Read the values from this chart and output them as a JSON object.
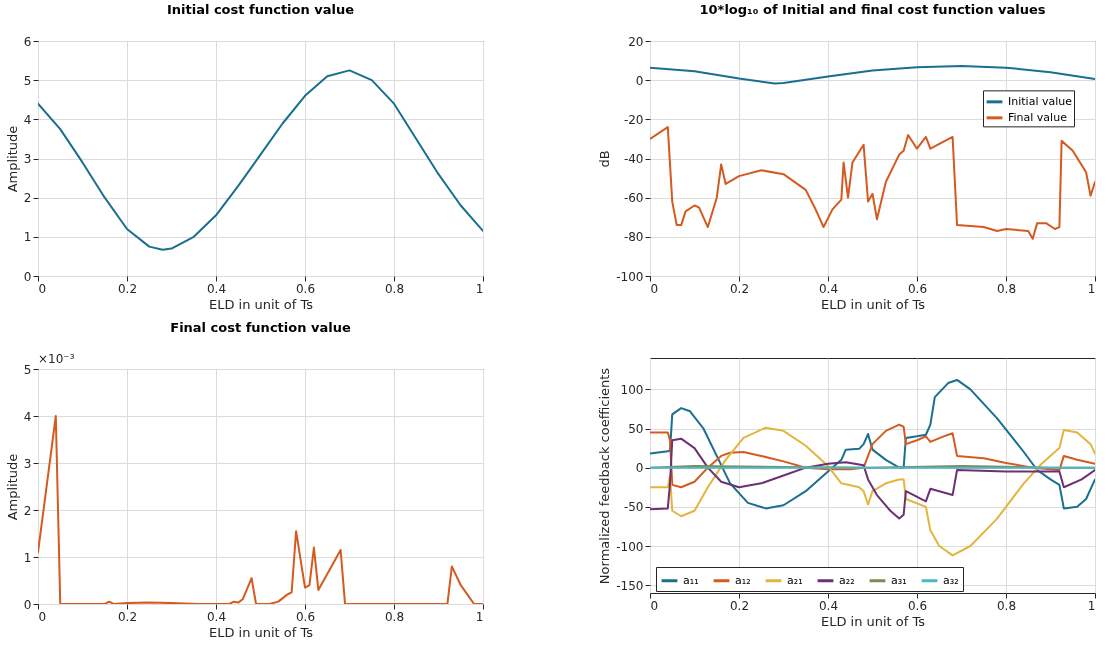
{
  "chart_data": [
    {
      "type": "line",
      "title": "Initial cost function value",
      "xlabel": "ELD in unit of Ts",
      "ylabel": "Amplitude",
      "xlim": [
        0,
        1
      ],
      "xticks": [
        0,
        0.2,
        0.4,
        0.6,
        0.8,
        1
      ],
      "ylim": [
        0,
        6
      ],
      "yticks": [
        0,
        1,
        2,
        3,
        4,
        5,
        6
      ],
      "grid": true,
      "series": [
        {
          "color": "#1a6f8f",
          "x": [
            0,
            0.05,
            0.1,
            0.15,
            0.2,
            0.25,
            0.28,
            0.3,
            0.35,
            0.4,
            0.45,
            0.5,
            0.55,
            0.6,
            0.65,
            0.7,
            0.75,
            0.8,
            0.85,
            0.9,
            0.95,
            1
          ],
          "values": [
            4.4,
            3.75,
            2.9,
            2.0,
            1.2,
            0.75,
            0.67,
            0.7,
            1.0,
            1.55,
            2.3,
            3.1,
            3.9,
            4.6,
            5.1,
            5.25,
            5.0,
            4.4,
            3.5,
            2.6,
            1.8,
            1.15
          ]
        }
      ]
    },
    {
      "type": "line",
      "title": "10*log₁₀ of Initial and final cost function values",
      "xlabel": "ELD in unit of Ts",
      "ylabel": "dB",
      "xlim": [
        0,
        1
      ],
      "xticks": [
        0,
        0.2,
        0.4,
        0.6,
        0.8,
        1
      ],
      "ylim": [
        -100,
        20
      ],
      "yticks": [
        -100,
        -80,
        -60,
        -40,
        -20,
        0,
        20
      ],
      "grid": true,
      "legend": "top right",
      "series": [
        {
          "name": "Initial value",
          "color": "#1a6f8f",
          "x": [
            0,
            0.1,
            0.2,
            0.28,
            0.3,
            0.4,
            0.5,
            0.6,
            0.7,
            0.8,
            0.9,
            1
          ],
          "values": [
            6.4,
            4.6,
            0.8,
            -1.7,
            -1.5,
            1.9,
            4.9,
            6.6,
            7.2,
            6.4,
            4.1,
            0.6
          ]
        },
        {
          "name": "Final value",
          "color": "#d45a1f",
          "x": [
            0,
            0.04,
            0.05,
            0.06,
            0.07,
            0.08,
            0.1,
            0.11,
            0.13,
            0.15,
            0.16,
            0.17,
            0.2,
            0.25,
            0.3,
            0.35,
            0.37,
            0.39,
            0.41,
            0.43,
            0.435,
            0.445,
            0.455,
            0.48,
            0.49,
            0.5,
            0.51,
            0.53,
            0.56,
            0.57,
            0.58,
            0.6,
            0.62,
            0.63,
            0.68,
            0.69,
            0.75,
            0.78,
            0.8,
            0.85,
            0.86,
            0.87,
            0.89,
            0.91,
            0.92,
            0.925,
            0.95,
            0.98,
            0.99,
            1
          ],
          "values": [
            -30,
            -24,
            -62,
            -74,
            -74,
            -67,
            -64,
            -65,
            -75,
            -60,
            -43,
            -53,
            -49,
            -46,
            -48,
            -56,
            -65,
            -75,
            -66,
            -61,
            -42,
            -60,
            -42,
            -33,
            -62,
            -58,
            -71,
            -52,
            -38,
            -36,
            -28,
            -35,
            -29,
            -35,
            -29,
            -74,
            -75,
            -77,
            -76,
            -77,
            -81,
            -73,
            -73,
            -76,
            -75,
            -31,
            -36,
            -47,
            -59,
            -52
          ]
        }
      ]
    },
    {
      "type": "line",
      "title": "Final cost function value",
      "xlabel": "ELD in unit of Ts",
      "ylabel": "Amplitude",
      "xlim": [
        0,
        1
      ],
      "xticks": [
        0,
        0.2,
        0.4,
        0.6,
        0.8,
        1
      ],
      "ylim": [
        0,
        5
      ],
      "yticks": [
        0,
        1,
        2,
        3,
        4,
        5
      ],
      "grid": true,
      "annotations": [
        "×10⁻³"
      ],
      "series": [
        {
          "color": "#d45a1f",
          "x": [
            0,
            0.04,
            0.05,
            0.15,
            0.16,
            0.17,
            0.2,
            0.25,
            0.3,
            0.36,
            0.43,
            0.44,
            0.45,
            0.46,
            0.48,
            0.49,
            0.52,
            0.54,
            0.56,
            0.57,
            0.58,
            0.6,
            0.61,
            0.62,
            0.63,
            0.68,
            0.69,
            0.92,
            0.93,
            0.95,
            0.98,
            1
          ],
          "values": [
            1.1,
            4.0,
            0,
            0,
            0.05,
            0,
            0.02,
            0.03,
            0.02,
            0,
            0,
            0.05,
            0.03,
            0.1,
            0.55,
            0,
            0,
            0.05,
            0.2,
            0.25,
            1.55,
            0.35,
            0.4,
            1.2,
            0.3,
            1.15,
            0,
            0,
            0.8,
            0.4,
            0,
            0
          ]
        }
      ]
    },
    {
      "type": "line",
      "xlabel": "ELD in unit of Ts",
      "ylabel": "Normalized feedback coefficients",
      "xlim": [
        0,
        1
      ],
      "xticks": [
        0,
        0.2,
        0.4,
        0.6,
        0.8,
        1
      ],
      "ylim": [
        -160,
        140
      ],
      "yticks": [
        -150,
        -100,
        -50,
        0,
        50,
        100
      ],
      "grid": true,
      "legend": "bottom",
      "series": [
        {
          "name": "a₁₁",
          "color": "#1a6f8f",
          "x": [
            0,
            0.04,
            0.045,
            0.05,
            0.07,
            0.09,
            0.12,
            0.15,
            0.18,
            0.22,
            0.26,
            0.3,
            0.35,
            0.4,
            0.43,
            0.44,
            0.47,
            0.48,
            0.49,
            0.5,
            0.53,
            0.56,
            0.57,
            0.575,
            0.6,
            0.62,
            0.63,
            0.64,
            0.67,
            0.69,
            0.72,
            0.78,
            0.84,
            0.87,
            0.9,
            0.92,
            0.93,
            0.96,
            0.98,
            1
          ],
          "values": [
            18,
            21,
            22,
            68,
            76,
            72,
            50,
            15,
            -20,
            -45,
            -52,
            -48,
            -30,
            -5,
            10,
            23,
            24,
            30,
            43,
            23,
            10,
            0,
            0,
            38,
            40,
            42,
            55,
            90,
            108,
            112,
            100,
            63,
            20,
            -3,
            -15,
            -22,
            -52,
            -50,
            -40,
            -15
          ]
        },
        {
          "name": "a₁₂",
          "color": "#d45a1f",
          "x": [
            0,
            0.04,
            0.045,
            0.05,
            0.07,
            0.1,
            0.13,
            0.16,
            0.18,
            0.21,
            0.25,
            0.3,
            0.35,
            0.4,
            0.45,
            0.48,
            0.5,
            0.53,
            0.56,
            0.57,
            0.575,
            0.6,
            0.62,
            0.63,
            0.66,
            0.68,
            0.69,
            0.75,
            0.8,
            0.86,
            0.92,
            0.93,
            0.96,
            1
          ],
          "values": [
            45,
            45,
            35,
            -22,
            -25,
            -18,
            0,
            15,
            19,
            20,
            15,
            8,
            0,
            -2,
            -2,
            0,
            30,
            47,
            55,
            52,
            30,
            35,
            40,
            33,
            40,
            44,
            15,
            12,
            6,
            0,
            -3,
            15,
            10,
            5
          ]
        },
        {
          "name": "a₂₁",
          "color": "#e3b53c",
          "x": [
            0,
            0.04,
            0.045,
            0.05,
            0.07,
            0.1,
            0.13,
            0.17,
            0.21,
            0.26,
            0.3,
            0.35,
            0.4,
            0.43,
            0.47,
            0.48,
            0.49,
            0.5,
            0.53,
            0.56,
            0.57,
            0.575,
            0.62,
            0.63,
            0.65,
            0.68,
            0.72,
            0.78,
            0.84,
            0.88,
            0.92,
            0.93,
            0.96,
            0.99,
            1
          ],
          "values": [
            -25,
            -25,
            -10,
            -55,
            -62,
            -55,
            -25,
            10,
            38,
            51,
            47,
            28,
            2,
            -20,
            -25,
            -30,
            -47,
            -30,
            -20,
            -15,
            -15,
            -40,
            -50,
            -80,
            -100,
            -112,
            -100,
            -65,
            -20,
            5,
            25,
            48,
            45,
            30,
            18
          ]
        },
        {
          "name": "a₂₂",
          "color": "#6e2f73",
          "x": [
            0,
            0.04,
            0.045,
            0.05,
            0.07,
            0.1,
            0.13,
            0.16,
            0.2,
            0.25,
            0.3,
            0.35,
            0.4,
            0.44,
            0.48,
            0.49,
            0.51,
            0.54,
            0.56,
            0.57,
            0.575,
            0.62,
            0.63,
            0.68,
            0.69,
            0.8,
            0.86,
            0.92,
            0.93,
            0.97,
            1
          ],
          "values": [
            -53,
            -52,
            -20,
            35,
            37,
            25,
            0,
            -18,
            -25,
            -20,
            -10,
            0,
            5,
            7,
            3,
            -15,
            -35,
            -55,
            -65,
            -60,
            -30,
            -43,
            -27,
            -35,
            -3,
            -5,
            -5,
            -5,
            -25,
            -15,
            -3
          ]
        },
        {
          "name": "a₃₁",
          "color": "#7f8a52",
          "x": [
            0,
            0.1,
            0.3,
            0.5,
            0.7,
            0.9,
            1
          ],
          "values": [
            0,
            2,
            1,
            0,
            2,
            0,
            0
          ]
        },
        {
          "name": "a₃₂",
          "color": "#4db6c9",
          "x": [
            0,
            0.5,
            1
          ],
          "values": [
            0,
            0,
            0
          ]
        }
      ]
    }
  ]
}
